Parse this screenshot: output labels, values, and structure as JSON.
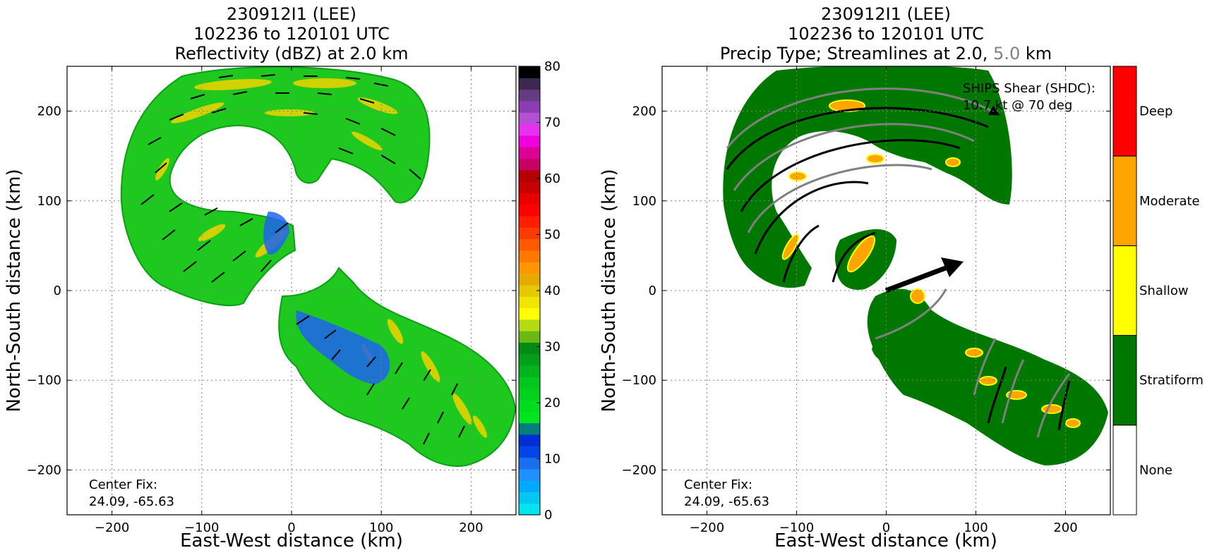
{
  "chart_data": [
    {
      "type": "heatmap",
      "title_lines": [
        "230912I1 (LEE)",
        "102236 to 120101 UTC",
        "Reflectivity (dBZ) at 2.0 km"
      ],
      "xlabel": "East-West distance (km)",
      "ylabel": "North-South distance (km)",
      "xlim": [
        -250,
        250
      ],
      "ylim": [
        -250,
        250
      ],
      "xticks": [
        -200,
        -100,
        0,
        100,
        200
      ],
      "yticks": [
        -200,
        -100,
        0,
        100,
        200
      ],
      "xtick_labels": [
        "−200",
        "−100",
        "0",
        "100",
        "200"
      ],
      "ytick_labels": [
        "−200",
        "−100",
        "0",
        "100",
        "200"
      ],
      "grid": true,
      "annotation_lines": [
        "Center Fix:",
        "24.09, -65.63"
      ],
      "colorbar": {
        "range": [
          0,
          80
        ],
        "ticks": [
          0,
          10,
          20,
          30,
          40,
          50,
          60,
          70,
          80
        ],
        "tick_labels": [
          "0",
          "10",
          "20",
          "30",
          "40",
          "50",
          "60",
          "70",
          "80"
        ],
        "colors": [
          "#00e5ee",
          "#00c8f0",
          "#00aaff",
          "#1e90ff",
          "#1c6ef0",
          "#0046e6",
          "#002ed2",
          "#00807a",
          "#00e61e",
          "#00dc1e",
          "#00d21e",
          "#00c81e",
          "#00b41e",
          "#00a01a",
          "#008c14",
          "#6ab814",
          "#b4dc14",
          "#ffff00",
          "#f0e600",
          "#e6c800",
          "#e6aa00",
          "#ff9600",
          "#ff7800",
          "#ff5a00",
          "#ff3c00",
          "#ff1e00",
          "#ff0000",
          "#e60000",
          "#c80000",
          "#b40000",
          "#c80064",
          "#dc0096",
          "#f000dc",
          "#e632f0",
          "#b450d2",
          "#8c3cb4",
          "#643c82",
          "#3c2850",
          "#000000"
        ]
      },
      "wind_barbs": true
    },
    {
      "type": "heatmap",
      "title_lines": [
        "230912I1 (LEE)",
        "102236 to 120101 UTC"
      ],
      "title_line3": {
        "prefix": "Precip Type; Streamlines at 2.0, ",
        "highlight": "5.0",
        "suffix": " km"
      },
      "xlabel": "East-West distance (km)",
      "ylabel": "North-South distance (km)",
      "xlim": [
        -250,
        250
      ],
      "ylim": [
        -250,
        250
      ],
      "xticks": [
        -200,
        -100,
        0,
        100,
        200
      ],
      "yticks": [
        -200,
        -100,
        0,
        100,
        200
      ],
      "xtick_labels": [
        "−200",
        "−100",
        "0",
        "100",
        "200"
      ],
      "ytick_labels": [
        "−200",
        "−100",
        "0",
        "100",
        "200"
      ],
      "grid": true,
      "annotation_lines": [
        "Center Fix:",
        "24.09, -65.63"
      ],
      "shear_lines": [
        "SHIPS Shear (SHDC):",
        "10.7 kt @ 70 deg"
      ],
      "shear": {
        "speed_kt": 10.7,
        "direction_deg": 70
      },
      "categories": [
        "None",
        "Stratiform",
        "Shallow",
        "Moderate",
        "Deep"
      ],
      "category_colors": [
        "#ffffff",
        "#007800",
        "#ffff00",
        "#ffa500",
        "#ff0000"
      ],
      "streamline_levels": [
        "2.0",
        "5.0"
      ],
      "streamline_colors": [
        "#000000",
        "#808080"
      ]
    }
  ]
}
